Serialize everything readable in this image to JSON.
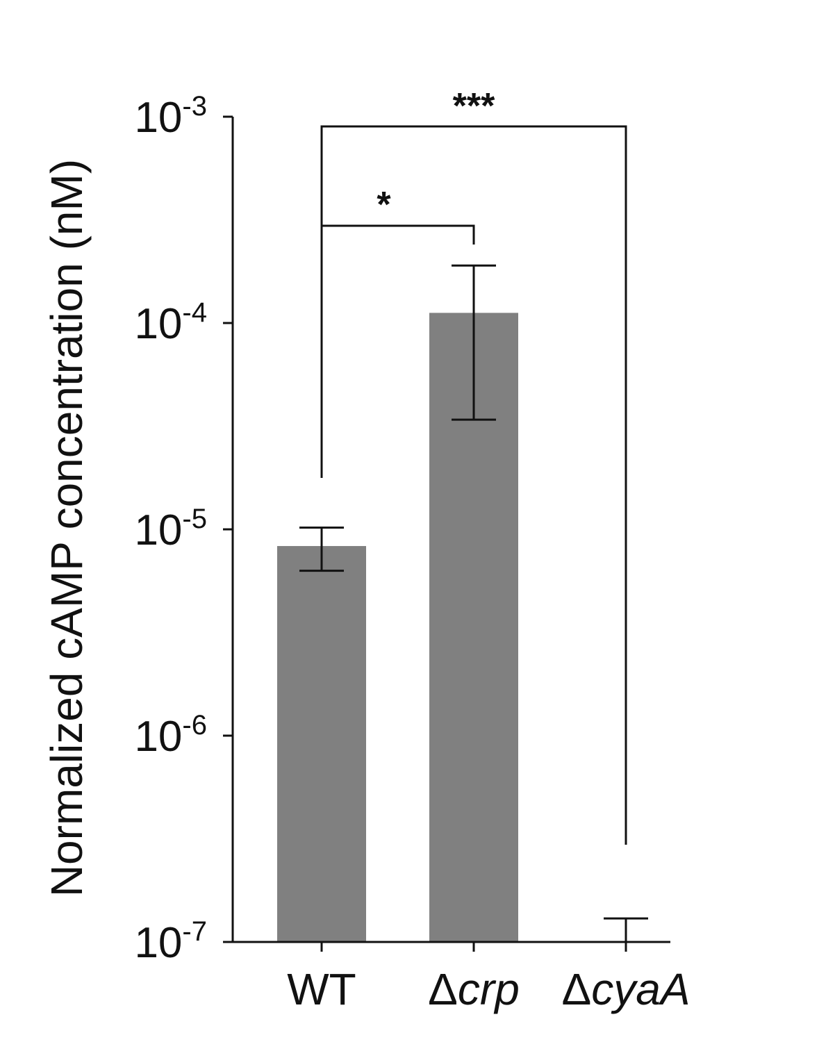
{
  "chart_data": {
    "type": "bar",
    "ylabel": "Normalized cAMP concentration (nM)",
    "yscale": "log",
    "ylim": [
      1e-07,
      0.001
    ],
    "yticks": [
      {
        "value": 0.001,
        "base": "10",
        "exp": "-3"
      },
      {
        "value": 0.0001,
        "base": "10",
        "exp": "-4"
      },
      {
        "value": 1e-05,
        "base": "10",
        "exp": "-5"
      },
      {
        "value": 1e-06,
        "base": "10",
        "exp": "-6"
      },
      {
        "value": 1e-07,
        "base": "10",
        "exp": "-7"
      }
    ],
    "categories": [
      {
        "prefix": "",
        "name": "WT",
        "italic": false
      },
      {
        "prefix": "Δ",
        "name": "crp",
        "italic": true
      },
      {
        "prefix": "Δ",
        "name": "cyaA",
        "italic": true
      }
    ],
    "values": [
      8.3e-06,
      0.000112,
      0
    ],
    "error_low": [
      6.3e-06,
      3.4e-05,
      null
    ],
    "error_high": [
      1.02e-05,
      0.00019,
      1.3e-07
    ],
    "bar_color": "#808080",
    "significance": [
      {
        "from": 0,
        "to": 1,
        "label": "*"
      },
      {
        "from": 0,
        "to": 2,
        "label": "***"
      }
    ],
    "grid": false
  }
}
